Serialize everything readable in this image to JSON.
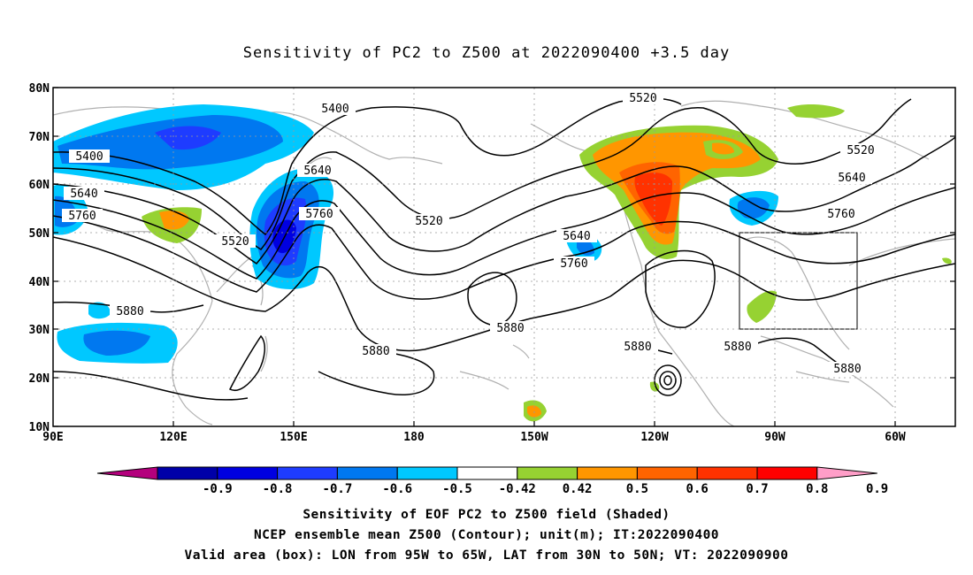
{
  "title": "Sensitivity of PC2 to Z500 at 2022090400 +3.5 day",
  "lat_labels": [
    "80N",
    "70N",
    "60N",
    "50N",
    "40N",
    "30N",
    "20N",
    "10N"
  ],
  "lon_labels": [
    "90E",
    "120E",
    "150E",
    "180",
    "150W",
    "120W",
    "90W",
    "60W"
  ],
  "contour_labels": [
    "5400",
    "5400",
    "5520",
    "5520",
    "5520",
    "5520",
    "5640",
    "5640",
    "5640",
    "5640",
    "5760",
    "5760",
    "5760",
    "5760",
    "5880",
    "5880",
    "5880",
    "5880",
    "5880",
    "5880"
  ],
  "colorbar": {
    "labels": [
      "-0.9",
      "-0.8",
      "-0.7",
      "-0.6",
      "-0.5",
      "-0.42",
      "0.42",
      "0.5",
      "0.6",
      "0.7",
      "0.8",
      "0.9"
    ],
    "colors": [
      "#b4007d",
      "#0000a8",
      "#0000e0",
      "#1e3cff",
      "#0078f0",
      "#00c8ff",
      "#ffffff",
      "#96d232",
      "#ff9600",
      "#ff6400",
      "#ff3200",
      "#ff0000",
      "#ff9ec8"
    ]
  },
  "footer": {
    "line1": "Sensitivity of EOF PC2 to Z500 field (Shaded)",
    "line2": "NCEP ensemble mean Z500 (Contour); unit(m); IT:2022090400",
    "line3": "Valid area (box): LON from 95W to 65W, LAT from 30N to 50N; VT: 2022090900"
  }
}
